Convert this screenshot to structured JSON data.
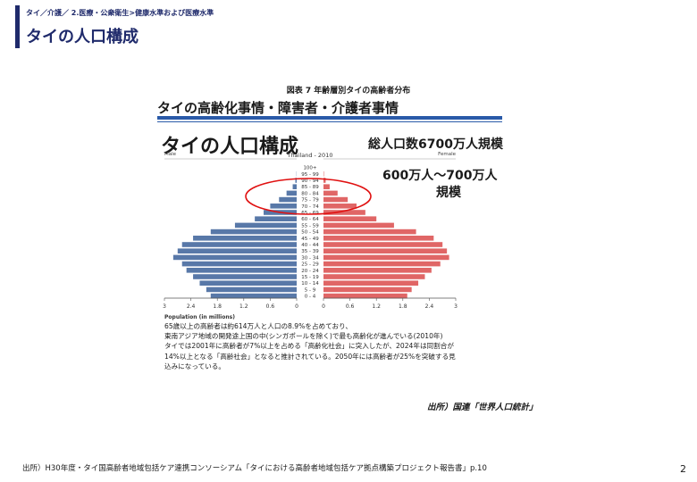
{
  "header": {
    "breadcrumb": "タイ／介護／ 2.医療・公衆衛生>健康水準および医療水準",
    "title": "タイの人口構成"
  },
  "figure": {
    "caption": "図表 7 年齢層別タイの高齢者分布",
    "subtitle": "タイの高齢化事情・障害者・介護者事情",
    "chart_title": "タイの人口構成",
    "annotation_total": "総人口数6700万人規模",
    "annotation_range_1": "600万人～700万人",
    "annotation_range_2": "規模",
    "note_lines": [
      "65歳以上の高齢者は約614万人と人口の8.9%を占めており、",
      "東南アジア地域の開発途上国の中(シンガポールを除く)で最も高齢化が進んでいる(2010年)",
      "タイでは2001年に高齢者が7%以上を占める「高齢化社会」に突入したが、2024年は同割合が",
      "14%以上となる「高齢社会」となると推計されている。2050年には高齢者が25%を突破する見",
      "込みになっている。"
    ],
    "source": "出所）国連「世界人口統計」"
  },
  "chart_data": {
    "type": "bar",
    "orientation": "population-pyramid",
    "title": "Thailand - 2010",
    "left_label": "Male",
    "right_label": "Female",
    "xlabel": "Population (in millions)",
    "xlim": [
      0,
      3
    ],
    "x_ticks": [
      "3",
      "2.4",
      "1.8",
      "1.2",
      "0.6",
      "0",
      "0",
      "0.6",
      "1.2",
      "1.8",
      "2.4",
      "3"
    ],
    "categories": [
      "100+",
      "95 - 99",
      "90 - 94",
      "85 - 89",
      "80 - 84",
      "75 - 79",
      "70 - 74",
      "65 - 69",
      "60 - 64",
      "55 - 59",
      "50 - 54",
      "45 - 49",
      "40 - 44",
      "35 - 39",
      "30 - 34",
      "25 - 29",
      "20 - 24",
      "15 - 19",
      "10 - 14",
      "5 - 9",
      "0 - 4"
    ],
    "series": [
      {
        "name": "Male",
        "color": "#5878a8",
        "values": [
          0.0,
          0.005,
          0.03,
          0.09,
          0.23,
          0.4,
          0.6,
          0.75,
          0.95,
          1.4,
          1.95,
          2.35,
          2.6,
          2.7,
          2.8,
          2.6,
          2.5,
          2.35,
          2.2,
          2.05,
          1.95
        ]
      },
      {
        "name": "Female",
        "color": "#e06666",
        "values": [
          0.0,
          0.01,
          0.05,
          0.14,
          0.32,
          0.55,
          0.75,
          0.95,
          1.2,
          1.6,
          2.1,
          2.5,
          2.7,
          2.8,
          2.85,
          2.65,
          2.45,
          2.3,
          2.15,
          2.0,
          1.9
        ]
      }
    ],
    "highlight": {
      "label": "elderly ellipse",
      "categories": [
        "85 - 89",
        "80 - 84",
        "75 - 79",
        "70 - 74"
      ],
      "color": "#e01010"
    }
  },
  "footer": {
    "citation": "出所）H30年度・タイ国高齢者地域包括ケア連携コンソーシアム「タイにおける高齢者地域包括ケア拠点構築プロジェクト報告書」p.10",
    "page_number": "2"
  }
}
